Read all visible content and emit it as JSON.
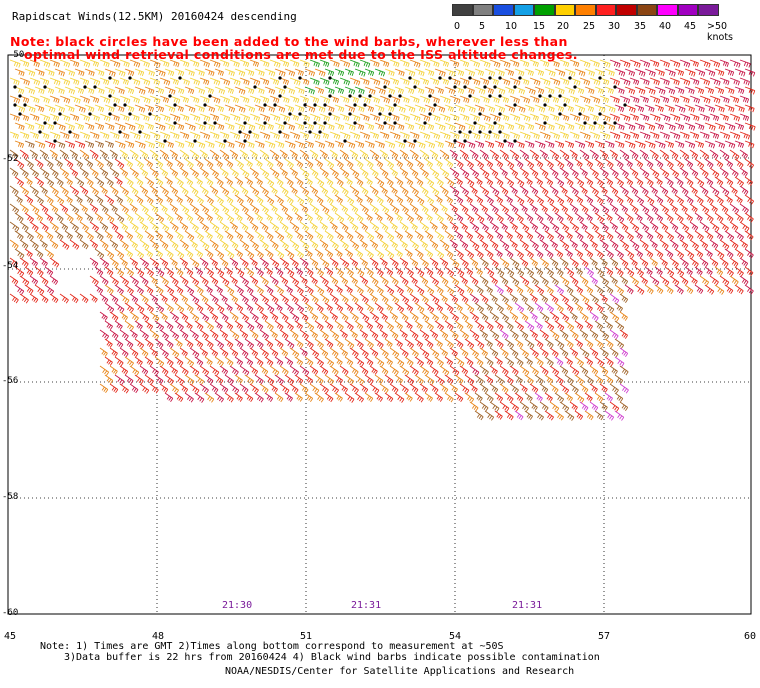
{
  "header": {
    "title": "Rapidscat Winds(12.5KM) 20160424 descending",
    "note_line1": "Note: black circles have been added to the wind barbs, wherever less than",
    "note_line2": "optimal wind retrieval conditions are met due to the ISS altitude changes."
  },
  "legend": {
    "values": [
      "0",
      "5",
      "10",
      "15",
      "20",
      "25",
      "30",
      "35",
      "40",
      "45",
      ">50 knots"
    ],
    "colors": [
      "#404040",
      "#808080",
      "#1a4fe0",
      "#14a0e6",
      "#00a000",
      "#ffd000",
      "#ff8000",
      "#ff2020",
      "#c00000",
      "#8b4513",
      "#ff00ff",
      "#a000c0",
      "#7a1a9a"
    ]
  },
  "map": {
    "latitude_labels": [
      "-50",
      "-52",
      "-54",
      "-56",
      "-58",
      "-60"
    ],
    "longitude_labels": [
      "45",
      "48",
      "51",
      "54",
      "57",
      "60"
    ],
    "time_labels": [
      "21:30",
      "21:31",
      "21:31"
    ],
    "barb_colors": {
      "yellow": "#f4d23c",
      "orange": "#e8861a",
      "red": "#e42a1c",
      "crimson": "#c81848",
      "brown": "#a0642a",
      "green": "#1ea01e",
      "magenta": "#d040d0",
      "black": "#000000"
    }
  },
  "footer": {
    "line1": "Note: 1) Times are GMT 2)Times along bottom correspond to measurement at ~50S",
    "line2": "3)Data buffer is 22 hrs from 20160424 4) Black wind barbs indicate possible contamination",
    "credit": "NOAA/NESDIS/Center for Satellite Applications and Research"
  }
}
